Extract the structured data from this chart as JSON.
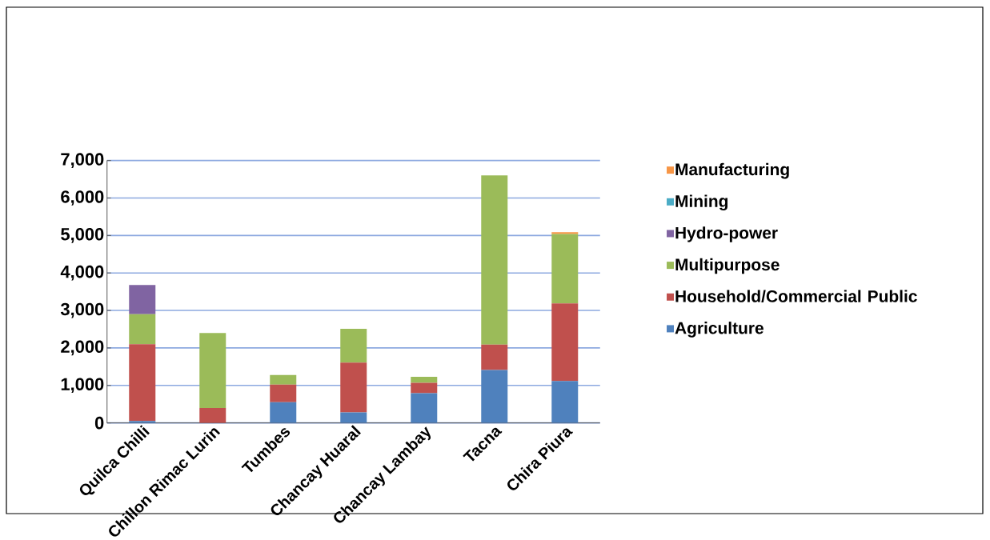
{
  "chart_data": {
    "type": "bar",
    "stacked": true,
    "categories": [
      "Quilca Chilli",
      "Chillon Rimac Lurin",
      "Tumbes",
      "Chancay Huaral",
      "Chancay Lambay",
      "Tacna",
      "Chira Piura"
    ],
    "series": [
      {
        "name": "Agriculture",
        "color": "#4f81bd",
        "values": [
          50,
          0,
          550,
          280,
          790,
          1410,
          1120
        ]
      },
      {
        "name": "Household/Commercial Public",
        "color": "#c0504d",
        "values": [
          2050,
          400,
          470,
          1330,
          280,
          680,
          2070
        ]
      },
      {
        "name": "Multipurpose",
        "color": "#9bbb59",
        "values": [
          800,
          2000,
          260,
          900,
          160,
          4510,
          1850
        ]
      },
      {
        "name": "Hydro-power",
        "color": "#8064a2",
        "values": [
          780,
          0,
          0,
          0,
          0,
          0,
          0
        ]
      },
      {
        "name": "Mining",
        "color": "#4bacc6",
        "values": [
          0,
          0,
          0,
          0,
          0,
          0,
          0
        ]
      },
      {
        "name": "Manufacturing",
        "color": "#f79646",
        "values": [
          0,
          0,
          0,
          0,
          0,
          0,
          50
        ]
      }
    ],
    "ylim": [
      0,
      7000
    ],
    "yticks": [
      0,
      {
        "value": 1000,
        "label": "1,000"
      },
      {
        "value": 2000,
        "label": "2,000"
      },
      {
        "value": 3000,
        "label": "3,000"
      },
      {
        "value": 4000,
        "label": "4,000"
      },
      {
        "value": 5000,
        "label": "5,000"
      },
      {
        "value": 6000,
        "label": "6,000"
      },
      {
        "value": 7000,
        "label": "7,000"
      }
    ],
    "grid": "y",
    "legend": "right"
  }
}
